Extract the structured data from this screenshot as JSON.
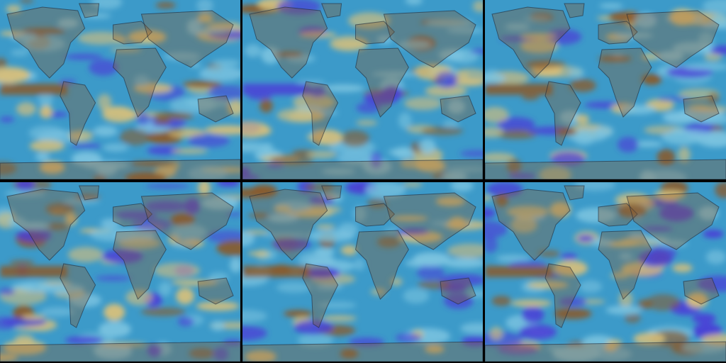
{
  "figure": {
    "layout": {
      "rows": 2,
      "cols": 3
    },
    "colors": {
      "ocean": "#3c9ac9",
      "ocean_light": "#7cc4e0",
      "dry": "#8a5a2a",
      "dry_light": "#d9c07a",
      "wet": "#4a3fd6",
      "land_edge": "#1e2a3a",
      "frame": "#000000"
    },
    "panels": [
      {
        "id": "panel-1",
        "variant": 0
      },
      {
        "id": "panel-2",
        "variant": 1
      },
      {
        "id": "panel-3",
        "variant": 2
      },
      {
        "id": "panel-4",
        "variant": 3
      },
      {
        "id": "panel-5",
        "variant": 4
      },
      {
        "id": "panel-6",
        "variant": 5
      }
    ]
  }
}
